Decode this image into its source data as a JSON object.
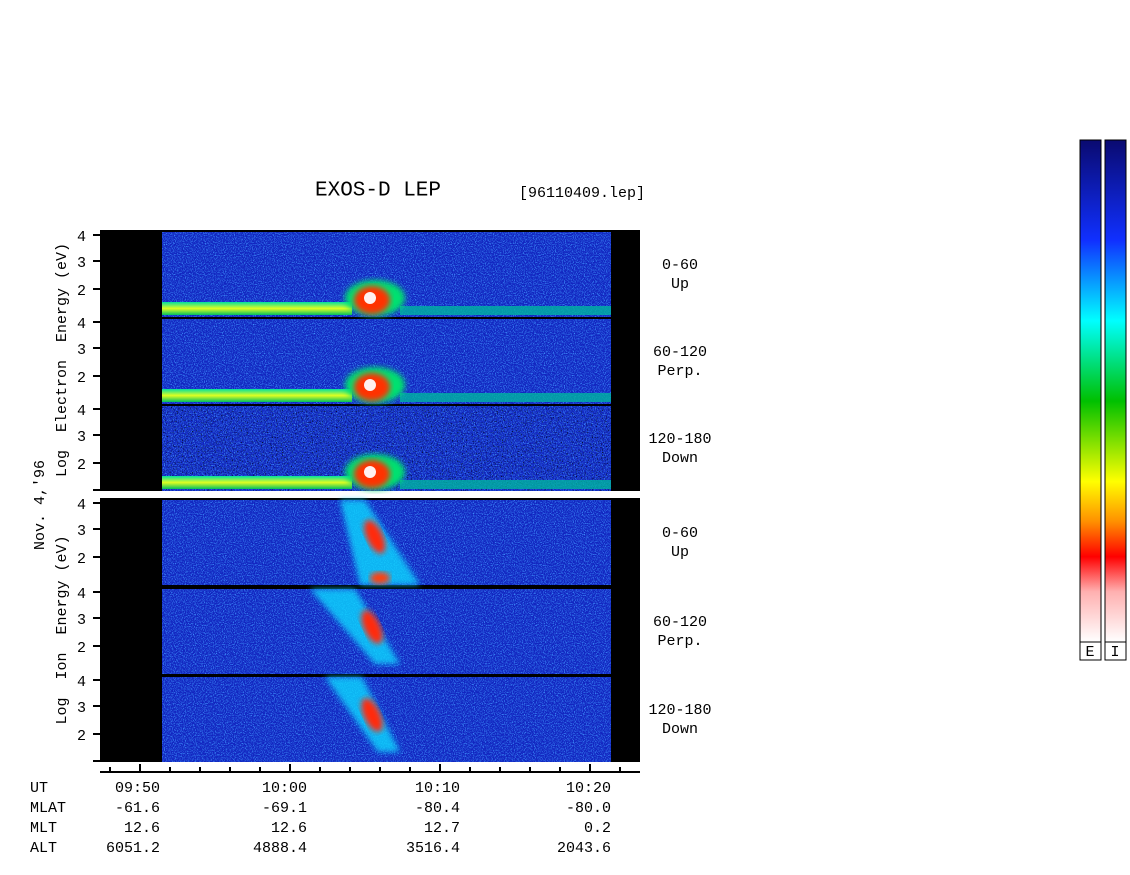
{
  "title": "EXOS-D LEP",
  "file": "[96110409.lep]",
  "date": "Nov. 4,'96",
  "electron": {
    "axis_label": "Log  Electron  Energy (eV)",
    "ticks": [
      "4",
      "3",
      "2"
    ],
    "panels": [
      {
        "range": "0-60",
        "direction": "Up"
      },
      {
        "range": "60-120",
        "direction": "Perp."
      },
      {
        "range": "120-180",
        "direction": "Down"
      }
    ]
  },
  "ion": {
    "axis_label": "Log  Ion  Energy (eV)",
    "ticks": [
      "4",
      "3",
      "2"
    ],
    "panels": [
      {
        "range": "0-60",
        "direction": "Up"
      },
      {
        "range": "60-120",
        "direction": "Perp."
      },
      {
        "range": "120-180",
        "direction": "Down"
      }
    ]
  },
  "time_table": {
    "rows": [
      {
        "label": "UT",
        "values": [
          "09:50",
          "10:00",
          "10:10",
          "10:20"
        ]
      },
      {
        "label": "MLAT",
        "values": [
          "-61.6",
          "-69.1",
          "-80.4",
          "-80.0"
        ]
      },
      {
        "label": "MLT",
        "values": [
          "12.6",
          "12.6",
          "12.7",
          "0.2"
        ]
      },
      {
        "label": "ALT",
        "values": [
          "6051.2",
          "4888.4",
          "3516.4",
          "2043.6"
        ]
      }
    ]
  },
  "colorbar": {
    "labels": [
      "E",
      "I"
    ]
  }
}
